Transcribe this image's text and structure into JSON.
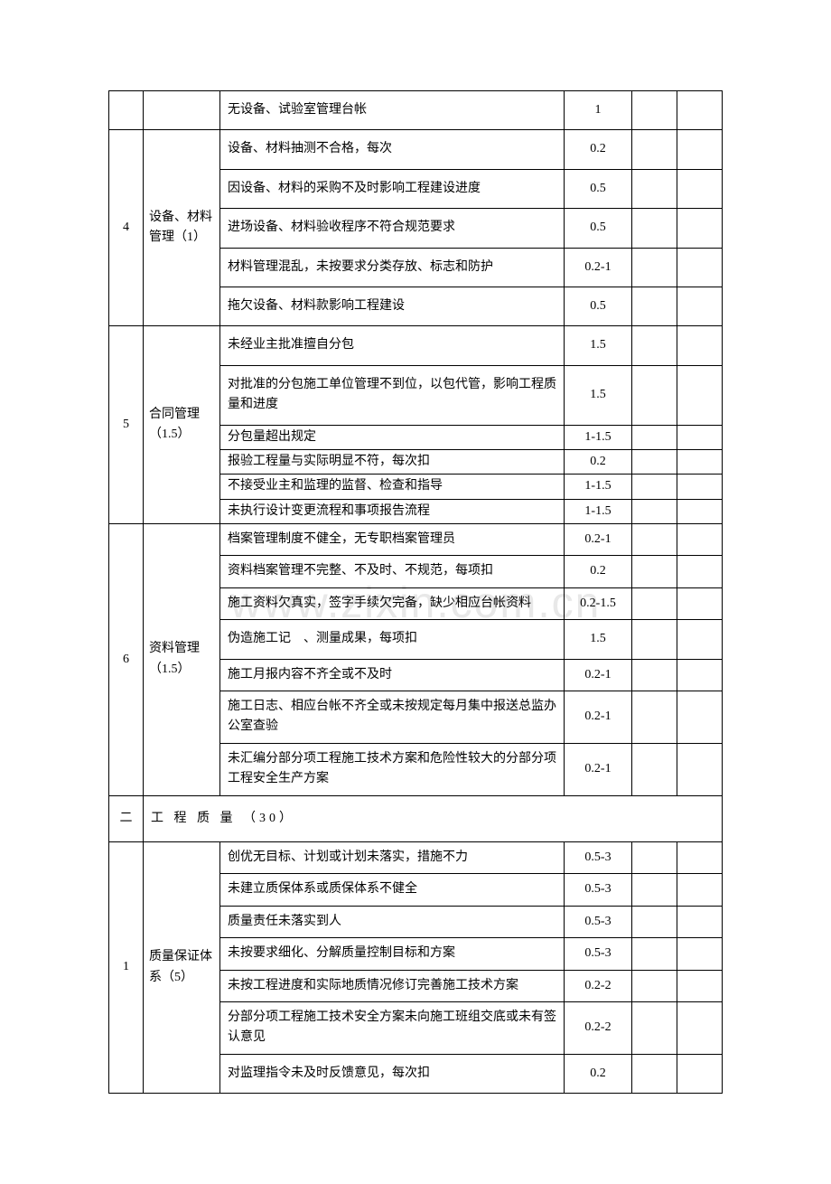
{
  "watermark": "www.zixin.com.cn",
  "rows": [
    {
      "num": "",
      "cat": "",
      "desc": "无设备、试验室管理台帐",
      "val": "1",
      "rowspan_num": 1,
      "rowspan_cat": 1,
      "show_num": true,
      "show_cat": true,
      "cls": "tall-row"
    },
    {
      "num": "4",
      "cat": "设备、材料管理（1）",
      "desc": "设备、材料抽测不合格，每次",
      "val": "0.2",
      "rowspan_num": 5,
      "rowspan_cat": 5,
      "show_num": true,
      "show_cat": true,
      "cls": "tall-row"
    },
    {
      "desc": "因设备、材料的采购不及时影响工程建设进度",
      "val": "0.5",
      "show_num": false,
      "show_cat": false,
      "cls": "tall-row"
    },
    {
      "desc": "进场设备、材料验收程序不符合规范要求",
      "val": "0.5",
      "show_num": false,
      "show_cat": false,
      "cls": "tall-row"
    },
    {
      "desc": "材料管理混乱，未按要求分类存放、标志和防护",
      "val": "0.2-1",
      "show_num": false,
      "show_cat": false,
      "cls": "tall-row"
    },
    {
      "desc": "拖欠设备、材料款影响工程建设",
      "val": "0.5",
      "show_num": false,
      "show_cat": false,
      "cls": "tall-row"
    },
    {
      "num": "5",
      "cat": "合同管理（1.5）",
      "desc": "未经业主批准擅自分包",
      "val": "1.5",
      "rowspan_num": 6,
      "rowspan_cat": 6,
      "show_num": true,
      "show_cat": true,
      "cls": "tall-row"
    },
    {
      "desc": "对批准的分包施工单位管理不到位，以包代管，影响工程质量和进度",
      "val": "1.5",
      "show_num": false,
      "show_cat": false,
      "cls": "tall-row"
    },
    {
      "desc": "分包量超出规定",
      "val": "1-1.5",
      "show_num": false,
      "show_cat": false,
      "cls": "short-row"
    },
    {
      "desc": "报验工程量与实际明显不符，每次扣",
      "val": "0.2",
      "show_num": false,
      "show_cat": false,
      "cls": "short-row"
    },
    {
      "desc": "不接受业主和监理的监督、检查和指导",
      "val": "1-1.5",
      "show_num": false,
      "show_cat": false,
      "cls": "short-row"
    },
    {
      "desc": "未执行设计变更流程和事项报告流程",
      "val": "1-1.5",
      "show_num": false,
      "show_cat": false,
      "cls": "short-row"
    },
    {
      "num": "6",
      "cat": "资料管理（1.5）",
      "desc": "档案管理制度不健全，无专职档案管理员",
      "val": "0.2-1",
      "rowspan_num": 7,
      "rowspan_cat": 7,
      "show_num": true,
      "show_cat": true,
      "cls": ""
    },
    {
      "desc": "资料档案管理不完整、不及时、不规范，每项扣",
      "val": "0.2",
      "show_num": false,
      "show_cat": false,
      "cls": ""
    },
    {
      "desc": "施工资料欠真实，签字手续欠完备，缺少相应台帐资料",
      "val": "0.2-1.5",
      "show_num": false,
      "show_cat": false,
      "cls": ""
    },
    {
      "desc": "伪造施工记　、测量成果，每项扣",
      "val": "1.5",
      "show_num": false,
      "show_cat": false,
      "cls": "tall-row"
    },
    {
      "desc": "施工月报内容不齐全或不及时",
      "val": "0.2-1",
      "show_num": false,
      "show_cat": false,
      "cls": ""
    },
    {
      "desc": "施工日志、相应台帐不齐全或未按规定每月集中报送总监办公室查验",
      "val": "0.2-1",
      "show_num": false,
      "show_cat": false,
      "cls": ""
    },
    {
      "desc": "未汇编分部分项工程施工技术方案和危险性较大的分部分项工程安全生产方案",
      "val": "0.2-1",
      "show_num": false,
      "show_cat": false,
      "cls": ""
    }
  ],
  "section_header": {
    "num": "二",
    "title": "工 程 质 量 （30）"
  },
  "rows2": [
    {
      "num": "1",
      "cat": "质量保证体系（5）",
      "desc": "创优无目标、计划或计划未落实，措施不力",
      "val": "0.5-3",
      "rowspan_num": 7,
      "rowspan_cat": 7,
      "show_num": true,
      "show_cat": true,
      "cls": ""
    },
    {
      "desc": "未建立质保体系或质保体系不健全",
      "val": "0.5-3",
      "show_num": false,
      "show_cat": false,
      "cls": ""
    },
    {
      "desc": "质量责任未落实到人",
      "val": "0.5-3",
      "show_num": false,
      "show_cat": false,
      "cls": ""
    },
    {
      "desc": "未按要求细化、分解质量控制目标和方案",
      "val": "0.5-3",
      "show_num": false,
      "show_cat": false,
      "cls": ""
    },
    {
      "desc": "未按工程进度和实际地质情况修订完善施工技术方案",
      "val": "0.2-2",
      "show_num": false,
      "show_cat": false,
      "cls": ""
    },
    {
      "desc": "分部分项工程施工技术安全方案未向施工班组交底或未有签认意见",
      "val": "0.2-2",
      "show_num": false,
      "show_cat": false,
      "cls": ""
    },
    {
      "desc": "对监理指令未及时反馈意见，每次扣",
      "val": "0.2",
      "show_num": false,
      "show_cat": false,
      "cls": "tall-row"
    }
  ],
  "table_style": {
    "border_color": "#000000",
    "background_color": "#ffffff",
    "font_family": "SimSun",
    "font_size": 14,
    "col_widths": {
      "num": 38,
      "cat": 85,
      "val": 75,
      "blank1": 50,
      "blank2": 50
    }
  }
}
